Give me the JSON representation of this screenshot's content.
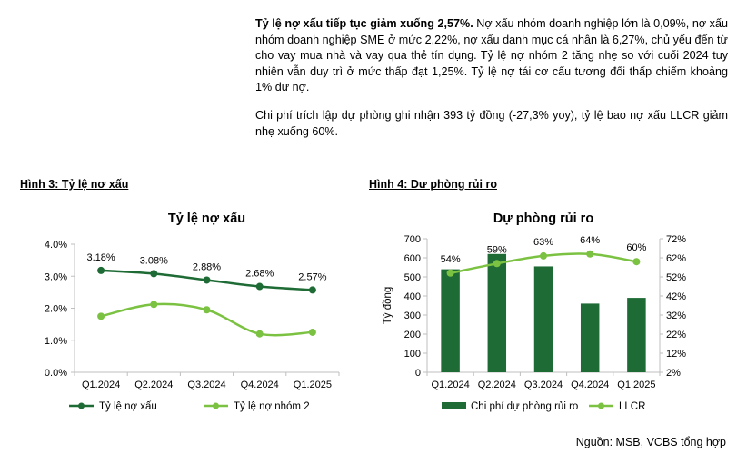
{
  "text": {
    "p1_bold": "Tỷ lệ nợ xấu tiếp tục giảm xuống 2,57%.",
    "p1_rest": " Nợ xấu nhóm doanh nghiệp lớn là 0,09%, nợ xấu nhóm doanh nghiệp SME ở mức 2,22%, nợ xấu danh mục cá nhân là 6,27%, chủ yếu đến từ cho vay mua nhà và vay qua thẻ tín dụng. Tỷ lệ nợ nhóm 2 tăng nhẹ so với cuối 2024 tuy nhiên vẫn duy trì ở mức thấp đạt 1,25%. Tỷ lệ nợ tái cơ cấu tương đối thấp chiếm khoảng 1% dư nợ.",
    "p2": "Chi phí trích lập dự phòng ghi nhận 393 tỷ đồng (-27,3% yoy), tỷ lệ bao nợ xấu LLCR giảm nhẹ xuống 60%.",
    "fig3_heading": "Hình 3: Tỷ lệ nơ xấu",
    "fig4_heading": "Hình 4: Dư phòng rủi ro",
    "source": "Nguồn: MSB, VCBS tổng hợp"
  },
  "colors": {
    "dark_green": "#1e6b35",
    "light_green": "#7cc242",
    "axis": "#bfbfbf"
  },
  "chart_data": [
    {
      "type": "line",
      "title": "Tỷ lệ nợ xấu",
      "categories": [
        "Q1.2024",
        "Q2.2024",
        "Q3.2024",
        "Q4.2024",
        "Q1.2025"
      ],
      "ylim": [
        0,
        4
      ],
      "yticks": [
        "0.0%",
        "1.0%",
        "2.0%",
        "3.0%",
        "4.0%"
      ],
      "grid": false,
      "legend_position": "bottom",
      "series": [
        {
          "name": "Tỷ lệ nợ xấu",
          "values": [
            3.18,
            3.08,
            2.88,
            2.68,
            2.57
          ],
          "labels": [
            "3.18%",
            "3.08%",
            "2.88%",
            "2.68%",
            "2.57%"
          ],
          "color": "#1e6b35"
        },
        {
          "name": "Tỷ lệ nợ nhóm 2",
          "values": [
            1.75,
            2.12,
            1.95,
            1.2,
            1.25
          ],
          "color": "#7cc242"
        }
      ]
    },
    {
      "type": "bar",
      "title": "Dự phòng rủi ro",
      "categories": [
        "Q1.2024",
        "Q2.2024",
        "Q3.2024",
        "Q4.2024",
        "Q1.2025"
      ],
      "ylabel": "Tỷ đồng",
      "ylim": [
        0,
        700
      ],
      "yticks": [
        "0",
        "100",
        "200",
        "300",
        "400",
        "500",
        "600",
        "700"
      ],
      "y2lim": [
        2,
        72
      ],
      "y2ticks": [
        "2%",
        "12%",
        "22%",
        "32%",
        "42%",
        "52%",
        "62%",
        "72%"
      ],
      "grid": false,
      "legend_position": "bottom",
      "series": [
        {
          "name": "Chi phí dự phòng rủi ro",
          "type": "bar",
          "axis": "left",
          "values": [
            540,
            620,
            555,
            360,
            390
          ],
          "color": "#1e6b35"
        },
        {
          "name": "LLCR",
          "type": "line",
          "axis": "right",
          "values": [
            54,
            59,
            63,
            64,
            60
          ],
          "labels": [
            "54%",
            "59%",
            "63%",
            "64%",
            "60%"
          ],
          "color": "#7cc242"
        }
      ]
    }
  ]
}
